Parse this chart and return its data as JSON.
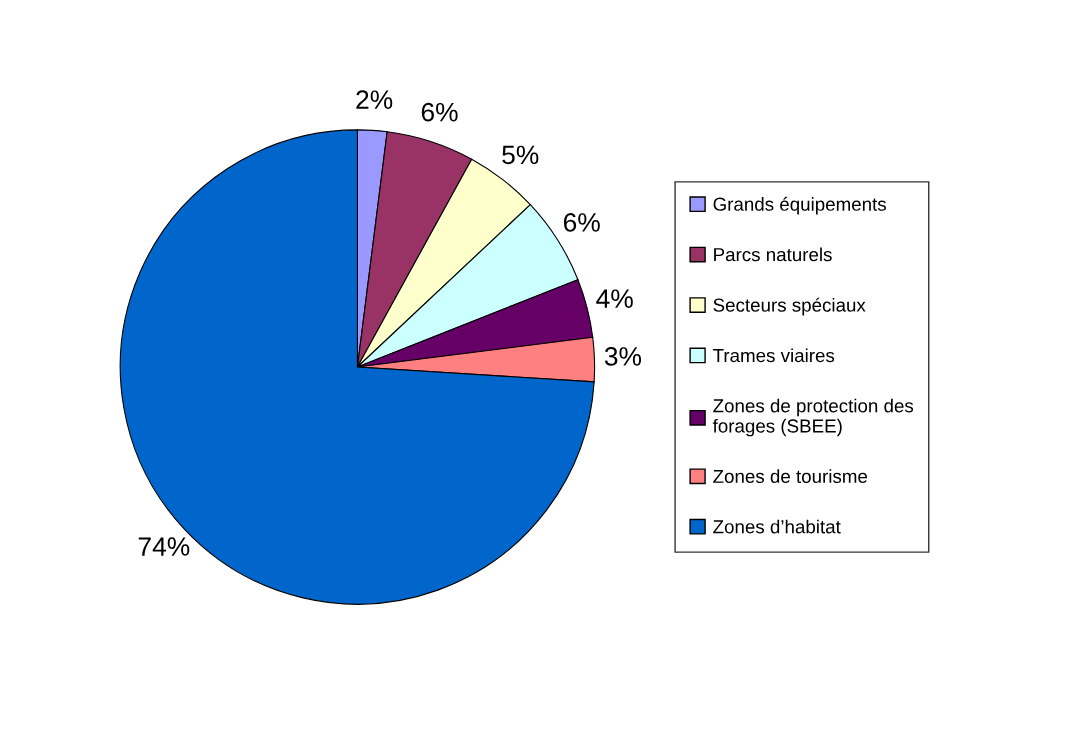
{
  "chart_data": {
    "type": "pie",
    "categories": [
      "Grands équipements",
      "Parcs naturels",
      "Secteurs spéciaux",
      "Trames viaires",
      "Zones de protection des\nforages (SBEE)",
      "Zones de tourisme",
      "Zones d’habitat"
    ],
    "values": [
      2,
      6,
      5,
      6,
      4,
      3,
      74
    ],
    "colors": [
      "#9999ff",
      "#993366",
      "#ffffcc",
      "#ccffff",
      "#660066",
      "#ff8080",
      "#0066cc"
    ],
    "value_labels": [
      "2%",
      "6%",
      "5%",
      "6%",
      "4%",
      "3%",
      "74%"
    ],
    "legend": "right"
  }
}
